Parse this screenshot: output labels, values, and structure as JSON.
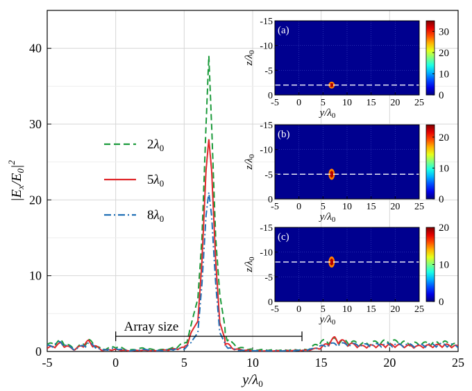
{
  "chart_data": [
    {
      "type": "line",
      "xlabel": "y/λ₀",
      "ylabel": "|Ex/E0|²",
      "xlim": [
        -5,
        25
      ],
      "ylim": [
        0,
        45
      ],
      "xticks": [
        "-5",
        "0",
        "5",
        "10",
        "15",
        "20",
        "25"
      ],
      "yticks": [
        "0",
        "10",
        "20",
        "30",
        "40"
      ],
      "grid": true,
      "legend_position": "left-middle",
      "series": [
        {
          "name": "2λ0",
          "label_main": "2",
          "label_italic": "λ",
          "label_sub": "0",
          "color": "#1a9a3a",
          "dash": "dashed",
          "x": [
            -5,
            -4,
            -3,
            -2,
            -1,
            0,
            1,
            2,
            3,
            4,
            5,
            5.5,
            6,
            6.3,
            6.6,
            6.8,
            7.0,
            7.3,
            7.6,
            8,
            8.5,
            9,
            10,
            12,
            14,
            15,
            16,
            18,
            20,
            22,
            24,
            25
          ],
          "y": [
            1.0,
            1.6,
            0.4,
            1.7,
            0.3,
            0.8,
            0.2,
            0.5,
            0.2,
            0.4,
            1.2,
            3.5,
            7.0,
            15.0,
            30.0,
            39.0,
            30.0,
            15.0,
            7.5,
            3.0,
            1.2,
            0.6,
            0.3,
            0.2,
            0.3,
            1.5,
            1.8,
            1.2,
            1.6,
            1.2,
            1.4,
            1.0
          ]
        },
        {
          "name": "5λ0",
          "label_main": "5",
          "label_italic": "λ",
          "label_sub": "0",
          "color": "#e0262a",
          "dash": "solid",
          "x": [
            -5,
            -4,
            -3,
            -2,
            -1,
            0,
            1,
            2,
            3,
            4,
            5,
            5.5,
            6,
            6.3,
            6.6,
            6.8,
            7.0,
            7.3,
            7.6,
            8,
            8.5,
            9,
            10,
            12,
            14,
            15,
            16,
            17,
            18,
            20,
            22,
            24,
            25
          ],
          "y": [
            0.5,
            1.2,
            0.3,
            1.5,
            0.2,
            0.3,
            0.1,
            0.2,
            0.1,
            0.3,
            0.6,
            2.5,
            4.0,
            12.0,
            24.0,
            28.0,
            24.0,
            12.0,
            3.8,
            1.5,
            0.5,
            0.3,
            0.1,
            0.1,
            0.2,
            0.6,
            2.0,
            1.2,
            0.8,
            1.0,
            0.8,
            1.0,
            0.8
          ]
        },
        {
          "name": "8λ0",
          "label_main": "8",
          "label_italic": "λ",
          "label_sub": "0",
          "color": "#1f6fb5",
          "dash": "dashdot",
          "x": [
            -5,
            -4,
            -3,
            -2,
            -1,
            0,
            1,
            2,
            3,
            4,
            5,
            5.5,
            6,
            6.3,
            6.6,
            6.8,
            7.0,
            7.3,
            7.6,
            8,
            8.5,
            9,
            10,
            12,
            14,
            15,
            16,
            18,
            20,
            22,
            24,
            25
          ],
          "y": [
            0.8,
            1.4,
            0.3,
            1.3,
            0.2,
            0.5,
            0.1,
            0.3,
            0.1,
            0.3,
            0.5,
            1.2,
            2.5,
            9.0,
            18.0,
            21.0,
            18.0,
            9.0,
            2.5,
            1.0,
            0.4,
            0.2,
            0.1,
            0.1,
            0.2,
            0.8,
            1.2,
            1.0,
            1.1,
            1.0,
            1.1,
            0.9
          ]
        }
      ],
      "annotation": {
        "text": "Array size",
        "x_start": 0,
        "x_end": 13.6,
        "y": 2
      }
    },
    {
      "type": "heatmap",
      "panel_label": "(a)",
      "xlabel": "y/λ₀",
      "ylabel": "z/λ₀",
      "xlim": [
        -5,
        25
      ],
      "ylim": [
        0,
        -15
      ],
      "xticks": [
        "-5",
        "0",
        "5",
        "10",
        "15",
        "20",
        "25"
      ],
      "yticks": [
        "-15",
        "-10",
        "-5",
        "0"
      ],
      "colorbar_ticks": [
        "30",
        "20",
        "10",
        "0"
      ],
      "colorbar_max": 35,
      "dashed_line_z": -2,
      "focus": {
        "y": 6.8,
        "z": -2,
        "peak": 35
      }
    },
    {
      "type": "heatmap",
      "panel_label": "(b)",
      "xlabel": "y/λ₀",
      "ylabel": "z/λ₀",
      "xlim": [
        -5,
        25
      ],
      "ylim": [
        0,
        -15
      ],
      "xticks": [
        "-5",
        "0",
        "5",
        "10",
        "15",
        "20",
        "25"
      ],
      "yticks": [
        "-15",
        "-10",
        "-5",
        "0"
      ],
      "colorbar_ticks": [
        "20",
        "10",
        "0"
      ],
      "colorbar_max": 24,
      "dashed_line_z": -5,
      "focus": {
        "y": 6.8,
        "z": -5,
        "peak": 24
      }
    },
    {
      "type": "heatmap",
      "panel_label": "(c)",
      "xlabel": "y/λ₀",
      "ylabel": "z/λ₀",
      "xlim": [
        -5,
        25
      ],
      "ylim": [
        0,
        -15
      ],
      "xticks": [
        "-5",
        "0",
        "5",
        "10",
        "15",
        "20",
        "25"
      ],
      "yticks": [
        "-15",
        "-10",
        "-5",
        "0"
      ],
      "colorbar_ticks": [
        "20",
        "10",
        "0"
      ],
      "colorbar_max": 20,
      "dashed_line_z": -8,
      "focus": {
        "y": 6.8,
        "z": -8,
        "peak": 20
      }
    }
  ]
}
